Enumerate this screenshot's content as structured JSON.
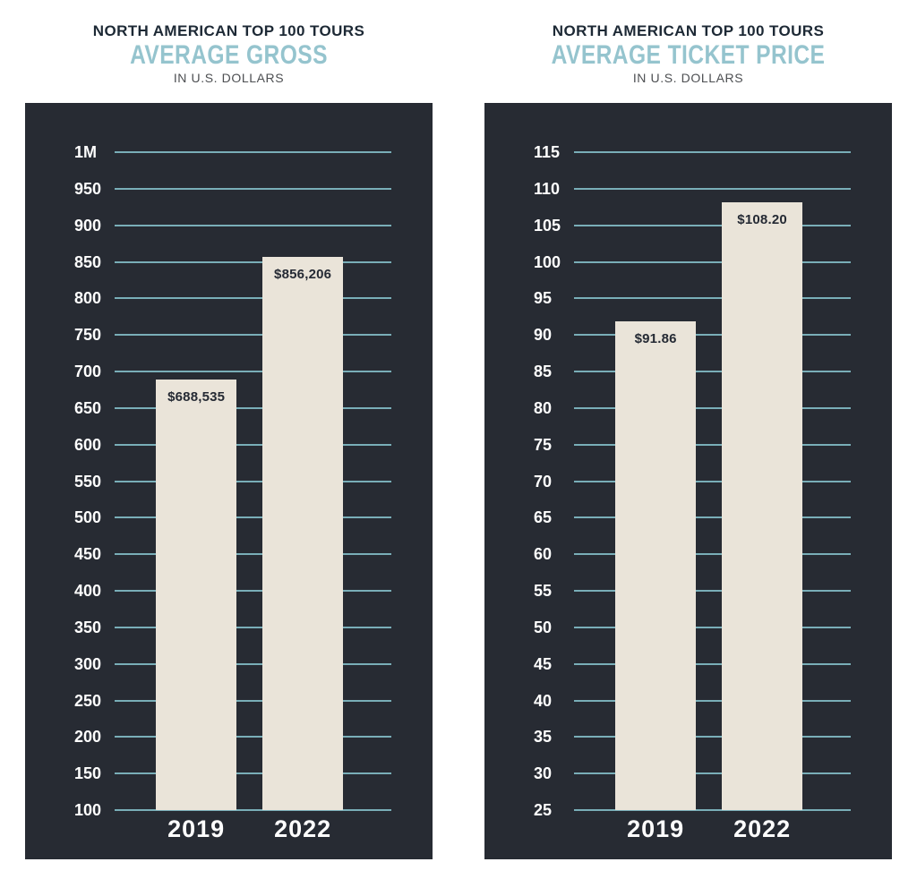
{
  "chart_data": [
    {
      "type": "bar",
      "title": "NORTH AMERICAN TOP 100 TOURS",
      "subtitle": "AVERAGE GROSS",
      "unit": "IN U.S. DOLLARS",
      "categories": [
        "2019",
        "2022"
      ],
      "values": [
        688535,
        856206
      ],
      "data_labels": [
        "$688,535",
        "$856,206"
      ],
      "ylim": [
        100000,
        1000000
      ],
      "y_step": 50000,
      "y_tick_labels": [
        "1M",
        "950",
        "900",
        "850",
        "800",
        "750",
        "700",
        "650",
        "600",
        "550",
        "500",
        "450",
        "400",
        "350",
        "300",
        "250",
        "200",
        "150",
        "100"
      ],
      "grid": true,
      "legend": false
    },
    {
      "type": "bar",
      "title": "NORTH AMERICAN TOP 100 TOURS",
      "subtitle": "AVERAGE TICKET PRICE",
      "unit": "IN U.S. DOLLARS",
      "categories": [
        "2019",
        "2022"
      ],
      "values": [
        91.86,
        108.2
      ],
      "data_labels": [
        "$91.86",
        "$108.20"
      ],
      "ylim": [
        25,
        115
      ],
      "y_step": 5,
      "y_tick_labels": [
        "115",
        "110",
        "105",
        "100",
        "95",
        "90",
        "85",
        "80",
        "75",
        "70",
        "65",
        "60",
        "55",
        "50",
        "45",
        "40",
        "35",
        "30",
        "25"
      ],
      "grid": true,
      "legend": false
    }
  ],
  "colors": {
    "background": "#ffffff",
    "panel": "#272b33",
    "gridline": "#79aeb8",
    "bar": "#eae4d9",
    "title": "#1d2935",
    "subtitle": "#95c4ce",
    "unit_text": "#4d4f52",
    "tick_text": "#ffffff",
    "bar_label": "#252a34",
    "x_label": "#ffffff"
  }
}
